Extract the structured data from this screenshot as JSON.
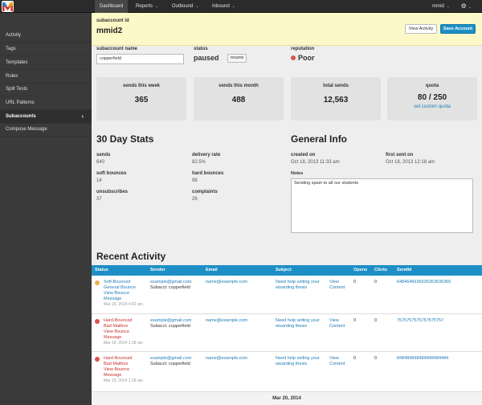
{
  "nav": {
    "items": [
      {
        "label": "Dashboard",
        "has_caret": false
      },
      {
        "label": "Reports",
        "has_caret": true
      },
      {
        "label": "Outbound",
        "has_caret": true
      },
      {
        "label": "Inbound",
        "has_caret": true
      }
    ],
    "user": "mmid",
    "caret": "⌄",
    "gear": "⚙"
  },
  "sidebar": {
    "items": [
      {
        "label": "Activity"
      },
      {
        "label": "Tags"
      },
      {
        "label": "Templates"
      },
      {
        "label": "Rules"
      },
      {
        "label": "Split Tests"
      },
      {
        "label": "URL Patterns"
      },
      {
        "label": "Subaccounts",
        "active": true
      },
      {
        "label": "Compose Message"
      }
    ],
    "active_chevron": "›"
  },
  "header": {
    "label": "subaccount id",
    "title": "mmid2",
    "view_activity": "View Activity",
    "save": "Save Account"
  },
  "form": {
    "name_label": "subaccount name",
    "name_value": "copperfield",
    "status_label": "status",
    "status_value": "paused",
    "resume": "resume",
    "reputation_label": "reputation",
    "reputation_value": "Poor",
    "reputation_color": "#d9534f"
  },
  "cards": [
    {
      "label": "sends this week",
      "value": "365"
    },
    {
      "label": "sends this month",
      "value": "488"
    },
    {
      "label": "total sends",
      "value": "12,563"
    },
    {
      "label": "quota",
      "value": "80 / 250",
      "link": "set custom quota"
    }
  ],
  "stats": {
    "title": "30 Day Stats",
    "items": [
      {
        "label": "sends",
        "value": "640"
      },
      {
        "label": "delivery rate",
        "value": "82.5%"
      },
      {
        "label": "soft bounces",
        "value": "14"
      },
      {
        "label": "hard bounces",
        "value": "98"
      },
      {
        "label": "unsubscribes",
        "value": "37"
      },
      {
        "label": "complaints",
        "value": "26"
      }
    ]
  },
  "general": {
    "title": "General Info",
    "created_label": "created on",
    "created_value": "Oct 18, 2013 11:33 am",
    "first_sent_label": "first sent on",
    "first_sent_value": "Oct 18, 2013 12:18 am",
    "notes_label": "Notes",
    "notes_value": "Sending spam to all our students"
  },
  "activity": {
    "title": "Recent Activity",
    "columns": [
      "Status",
      "Sender",
      "Email",
      "Subject",
      "Opens",
      "Clicks",
      "SendId"
    ],
    "rows": [
      {
        "status_color": "#f0ad4e",
        "status_line1": "Soft-Bounced",
        "status_line2": "General Bounce",
        "view_bounce_1": "View Bounce",
        "view_bounce_2": "Message",
        "date": "Mar 20, 2014 4:02 am",
        "sender": "example@gmail.com",
        "subacct": "Subacct: copperfield",
        "email": "name@example.com",
        "subject_1": "Need help writing your",
        "subject_2": "wizarding thesis",
        "view_1": "View",
        "view_2": "Content",
        "opens": "0",
        "clicks": "0",
        "sendid": "6484646636636363636366"
      },
      {
        "status_color": "#d9534f",
        "status_line1": "Hard-Bounced",
        "status_line2": "Bad Mailbox",
        "view_bounce_1": "View Bounce",
        "view_bounce_2": "Message",
        "date": "Mar 19, 2014 1:18 am",
        "sender": "example@gmail.com",
        "subacct": "Subacct: copperfield",
        "email": "name@example.com",
        "subject_1": "Need help writing your",
        "subject_2": "wizarding thesis",
        "view_1": "View",
        "view_2": "Content",
        "opens": "0",
        "clicks": "0",
        "sendid": "7575757575757575757"
      },
      {
        "status_color": "#d9534f",
        "status_line1": "Hard-Bounced",
        "status_line2": "Bad Mailbox",
        "view_bounce_1": "View Bounce",
        "view_bounce_2": "Message",
        "date": "Mar 19, 2014 1:18 am",
        "sender": "example@gmail.com",
        "subacct": "Subacct: copperfield",
        "email": "name@example.com",
        "subject_1": "Need help writing your",
        "subject_2": "wizarding thesis",
        "view_1": "View",
        "view_2": "Content",
        "opens": "0",
        "clicks": "0",
        "sendid": "848484848484848484484"
      }
    ],
    "date_separator": "Mar 20, 2014"
  }
}
